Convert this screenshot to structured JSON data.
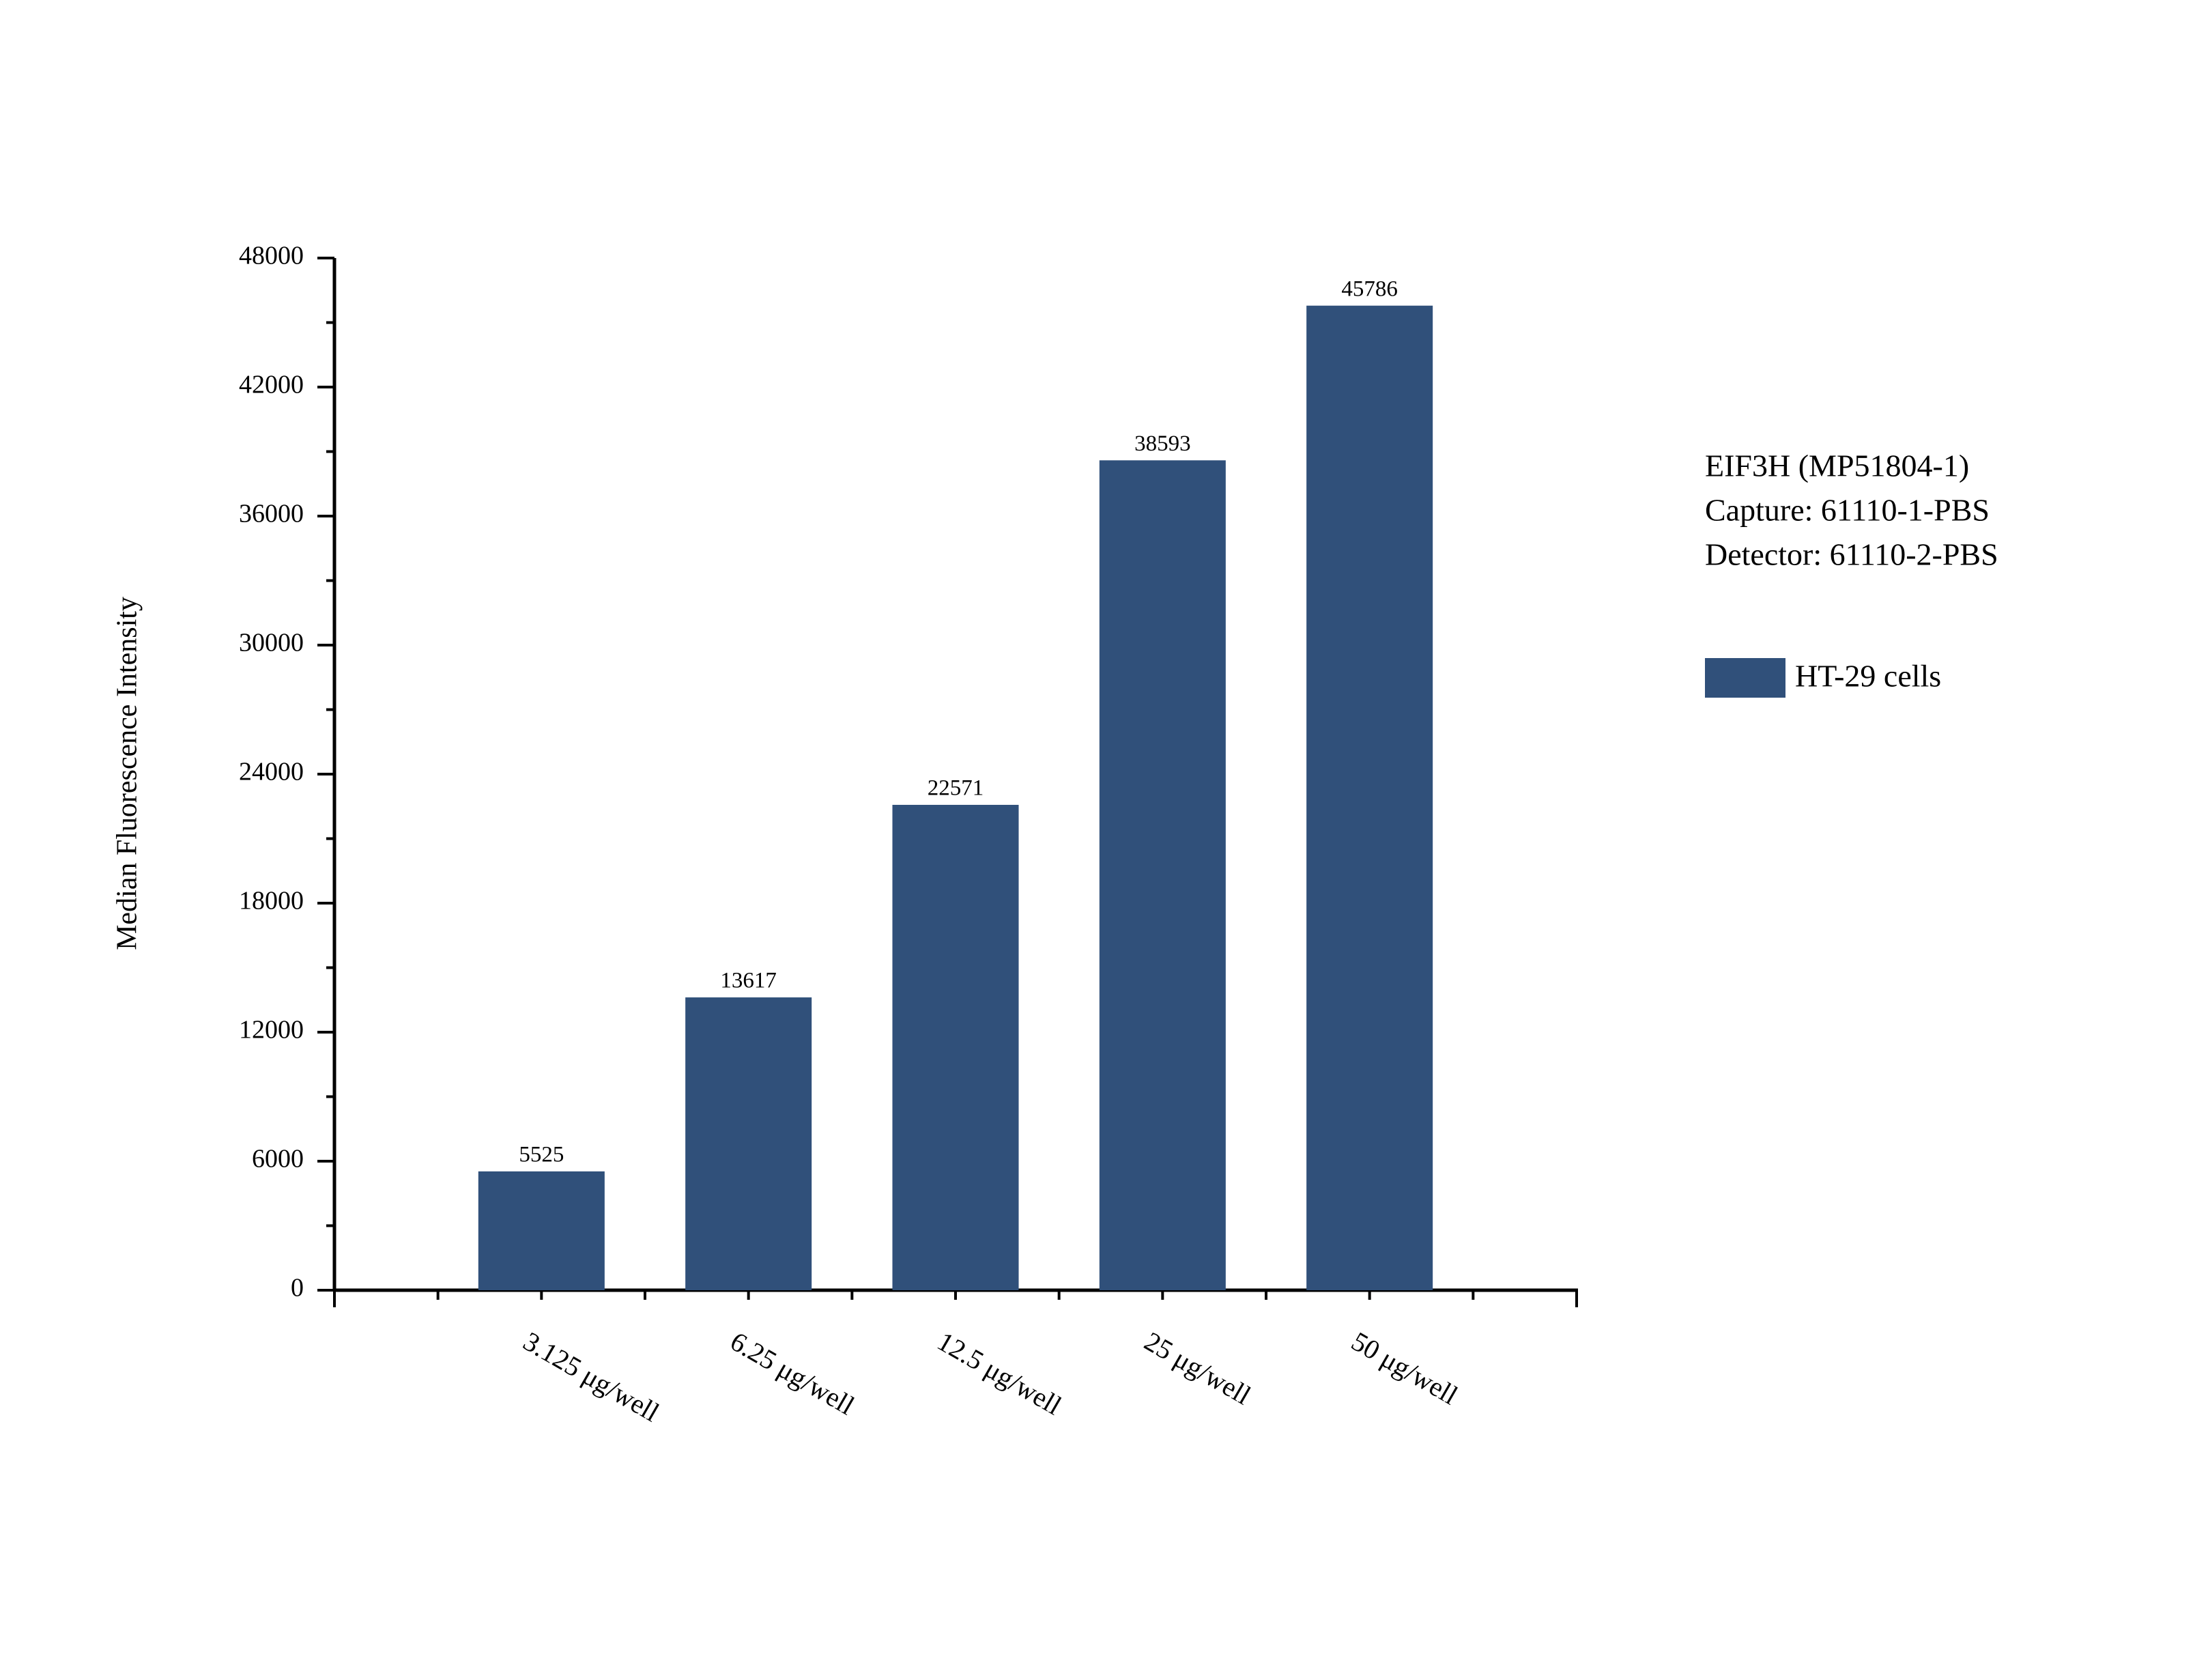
{
  "chart_data": {
    "type": "bar",
    "y_label": "Median Fluorescence Intensity",
    "categories": [
      "3.125 μg/well",
      "6.25 μg/well",
      "12.5 μg/well",
      "25 μg/well",
      "50 μg/well"
    ],
    "series": [
      {
        "name": "HT-29 cells",
        "color": "#30507a",
        "values": [
          5525,
          13617,
          22571,
          38593,
          45786
        ]
      }
    ],
    "ylim": [
      0,
      48000
    ],
    "yticks": [
      0,
      6000,
      12000,
      18000,
      24000,
      30000,
      36000,
      42000,
      48000
    ],
    "annotations": [
      "EIF3H (MP51804-1)",
      "Capture: 61110-1-PBS",
      "Detector: 61110-2-PBS"
    ],
    "legend": "right"
  }
}
